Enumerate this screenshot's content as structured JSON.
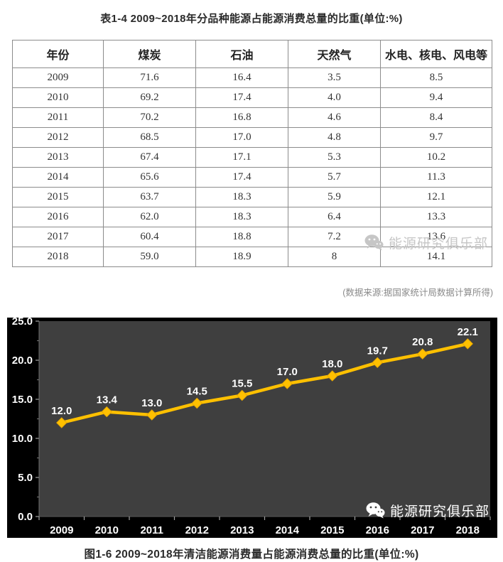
{
  "watermark": {
    "text": "能源研究俱乐部",
    "icon": "wechat-icon"
  },
  "colors": {
    "line": "#FFC000",
    "plot_background": "#3F3F3F",
    "chart_background": "#000000",
    "table_border": "#8c8c8c",
    "watermark_gray": "#c6c6c6"
  },
  "chart_data": [
    {
      "type": "table",
      "title": "表1-4  2009~2018年分品种能源占能源消费总量的比重(单位:%)",
      "columns": [
        "年份",
        "煤炭",
        "石油",
        "天然气",
        "水电、核电、风电等"
      ],
      "rows": [
        [
          "2009",
          "71.6",
          "16.4",
          "3.5",
          "8.5"
        ],
        [
          "2010",
          "69.2",
          "17.4",
          "4.0",
          "9.4"
        ],
        [
          "2011",
          "70.2",
          "16.8",
          "4.6",
          "8.4"
        ],
        [
          "2012",
          "68.5",
          "17.0",
          "4.8",
          "9.7"
        ],
        [
          "2013",
          "67.4",
          "17.1",
          "5.3",
          "10.2"
        ],
        [
          "2014",
          "65.6",
          "17.4",
          "5.7",
          "11.3"
        ],
        [
          "2015",
          "63.7",
          "18.3",
          "5.9",
          "12.1"
        ],
        [
          "2016",
          "62.0",
          "18.3",
          "6.4",
          "13.3"
        ],
        [
          "2017",
          "60.4",
          "18.8",
          "7.2",
          "13.6"
        ],
        [
          "2018",
          "59.0",
          "18.9",
          "8",
          "14.1"
        ]
      ],
      "source_note": "(数据来源:据国家统计局数据计算所得)"
    },
    {
      "type": "line",
      "title": "图1-6  2009~2018年清洁能源消费量占能源消费总量的比重(单位:%)",
      "categories": [
        "2009",
        "2010",
        "2011",
        "2012",
        "2013",
        "2014",
        "2015",
        "2016",
        "2017",
        "2018"
      ],
      "series": [
        {
          "name": "清洁能源消费量占能源消费总量的比重",
          "values": [
            12.0,
            13.4,
            13.0,
            14.5,
            15.5,
            17.0,
            18.0,
            19.7,
            20.8,
            22.1
          ]
        }
      ],
      "data_labels": [
        "12.0",
        "13.4",
        "13.0",
        "14.5",
        "15.5",
        "17.0",
        "18.0",
        "19.7",
        "20.8",
        "22.1"
      ],
      "ylim": [
        0,
        25
      ],
      "ytick_step": 5,
      "ytick_labels": [
        "0.0",
        "5.0",
        "10.0",
        "15.0",
        "20.0",
        "25.0"
      ],
      "grid": false,
      "legend": "none",
      "marker": "diamond",
      "line_color": "#FFC000",
      "label_color": "#FFFFFF",
      "plot_bg": "#3F3F3F",
      "chart_bg": "#000000"
    }
  ]
}
